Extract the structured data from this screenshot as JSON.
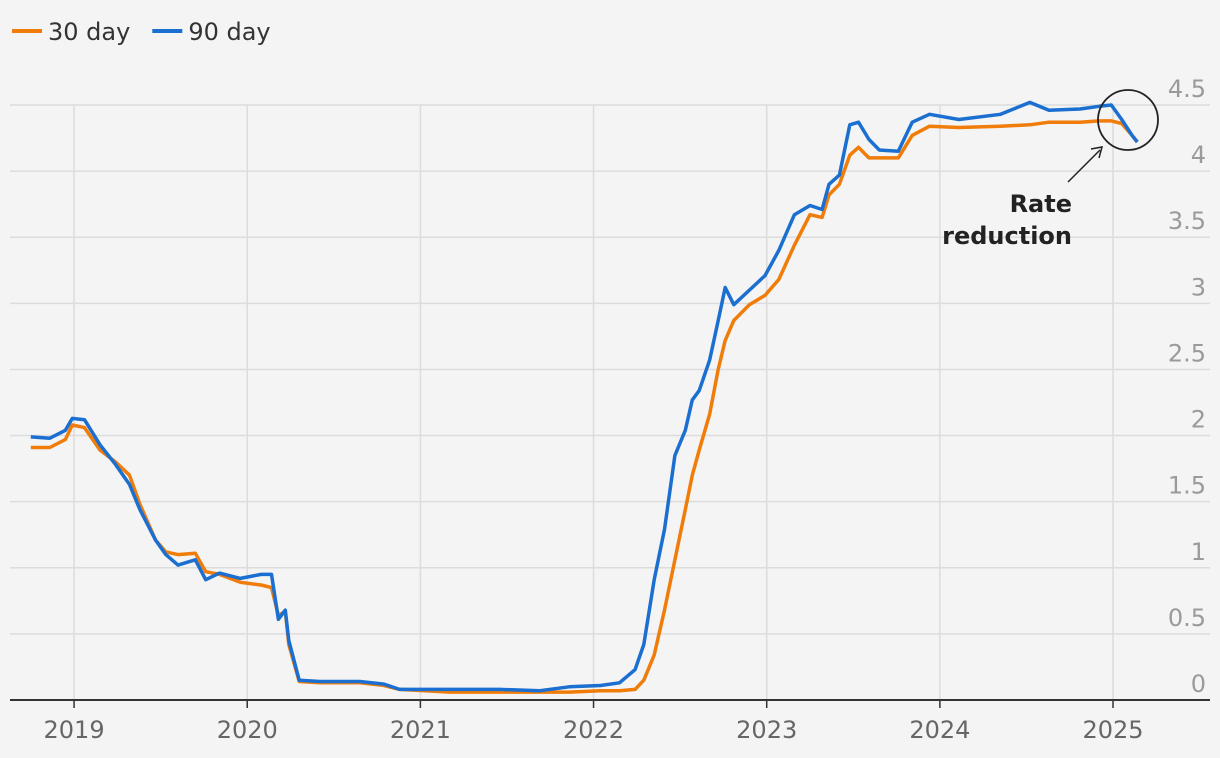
{
  "chart_data": {
    "type": "line",
    "x": [
      2018.75,
      2018.86,
      2018.95,
      2018.99,
      2019.06,
      2019.15,
      2019.24,
      2019.32,
      2019.38,
      2019.47,
      2019.53,
      2019.6,
      2019.7,
      2019.76,
      2019.84,
      2019.96,
      2020.08,
      2020.14,
      2020.18,
      2020.22,
      2020.24,
      2020.3,
      2020.42,
      2020.65,
      2020.79,
      2020.88,
      2021.17,
      2021.46,
      2021.69,
      2021.86,
      2022.04,
      2022.15,
      2022.24,
      2022.29,
      2022.35,
      2022.41,
      2022.47,
      2022.53,
      2022.57,
      2022.61,
      2022.67,
      2022.72,
      2022.76,
      2022.81,
      2022.9,
      2022.99,
      2023.07,
      2023.16,
      2023.25,
      2023.32,
      2023.36,
      2023.42,
      2023.48,
      2023.53,
      2023.59,
      2023.65,
      2023.76,
      2023.84,
      2023.94,
      2024.11,
      2024.35,
      2024.52,
      2024.63,
      2024.81,
      2024.92,
      2024.99,
      2025.05,
      2025.11,
      2025.14
    ],
    "series": [
      {
        "name": "30 day",
        "color": "#f07c0a",
        "values": [
          1.91,
          1.91,
          1.97,
          2.08,
          2.06,
          1.89,
          1.8,
          1.7,
          1.48,
          1.21,
          1.12,
          1.1,
          1.11,
          0.97,
          0.95,
          0.89,
          0.87,
          0.85,
          0.64,
          0.67,
          0.42,
          0.14,
          0.13,
          0.13,
          0.11,
          0.08,
          0.06,
          0.06,
          0.06,
          0.06,
          0.07,
          0.07,
          0.08,
          0.15,
          0.34,
          0.68,
          1.06,
          1.44,
          1.7,
          1.89,
          2.16,
          2.5,
          2.72,
          2.87,
          2.99,
          3.06,
          3.18,
          3.44,
          3.67,
          3.65,
          3.82,
          3.9,
          4.12,
          4.18,
          4.1,
          4.1,
          4.1,
          4.27,
          4.34,
          4.33,
          4.34,
          4.35,
          4.37,
          4.37,
          4.38,
          4.38,
          4.36,
          4.27,
          4.22
        ]
      },
      {
        "name": "90 day",
        "color": "#1a6fd0",
        "values": [
          1.99,
          1.98,
          2.04,
          2.13,
          2.12,
          1.93,
          1.78,
          1.63,
          1.44,
          1.21,
          1.1,
          1.02,
          1.06,
          0.91,
          0.96,
          0.92,
          0.95,
          0.95,
          0.61,
          0.68,
          0.45,
          0.15,
          0.14,
          0.14,
          0.12,
          0.08,
          0.08,
          0.08,
          0.07,
          0.1,
          0.11,
          0.13,
          0.23,
          0.42,
          0.91,
          1.29,
          1.85,
          2.04,
          2.27,
          2.34,
          2.57,
          2.87,
          3.12,
          2.99,
          3.1,
          3.21,
          3.4,
          3.67,
          3.74,
          3.71,
          3.9,
          3.97,
          4.35,
          4.37,
          4.24,
          4.16,
          4.15,
          4.37,
          4.43,
          4.39,
          4.43,
          4.52,
          4.46,
          4.47,
          4.49,
          4.5,
          4.39,
          4.27,
          4.22
        ]
      }
    ],
    "xlim": [
      2018.63,
      2025.56
    ],
    "xticks": [
      2019,
      2020,
      2021,
      2022,
      2023,
      2024,
      2025
    ],
    "ylim": [
      0,
      4.5
    ],
    "yticks": [
      0,
      0.5,
      1,
      1.5,
      2,
      2.5,
      3,
      3.5,
      4,
      4.5
    ],
    "grid": true,
    "annotation": [
      "Rate",
      "reduction"
    ]
  }
}
